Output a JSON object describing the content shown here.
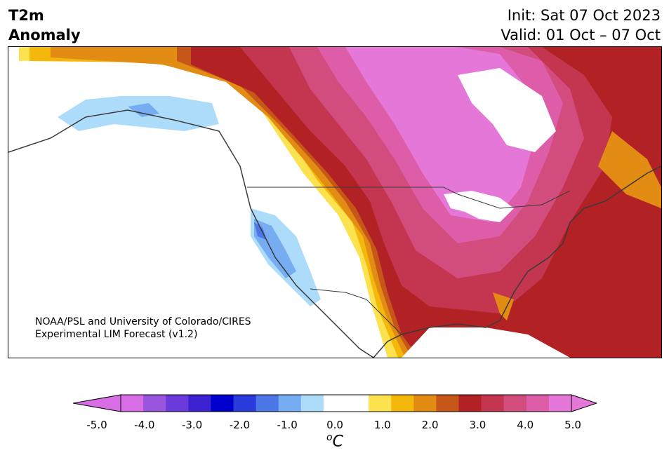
{
  "title": {
    "left": "T2m\nAnomaly",
    "init": "Init: Sat 07 Oct 2023",
    "valid": "Valid: 01 Oct – 07 Oct"
  },
  "credit": {
    "line1": "NOAA/PSL and University of Colorado/CIRES",
    "line2": "Experimental LIM Forecast (v1.2)"
  },
  "colorbar": {
    "units_base": "C",
    "units_sup": "o",
    "ticks": [
      "-5.0",
      "-4.0",
      "-3.0",
      "-2.0",
      "-1.0",
      "0.0",
      "1.0",
      "2.0",
      "3.0",
      "4.0",
      "5.0"
    ],
    "colors": [
      "#d76ee6",
      "#9a55de",
      "#6a3ada",
      "#3b22d2",
      "#0000cc",
      "#2a3bdb",
      "#4d76e6",
      "#76adf2",
      "#addcfa",
      "#ffffff",
      "#ffffff",
      "#fde250",
      "#f3b80b",
      "#e38c14",
      "#c65718",
      "#b22225",
      "#c43550",
      "#d24c7e",
      "#dd5da8",
      "#e577d9"
    ],
    "under_color": "#d76ee6",
    "over_color": "#e577d9"
  },
  "map": {
    "region": "North America",
    "field": "2m temperature anomaly"
  }
}
